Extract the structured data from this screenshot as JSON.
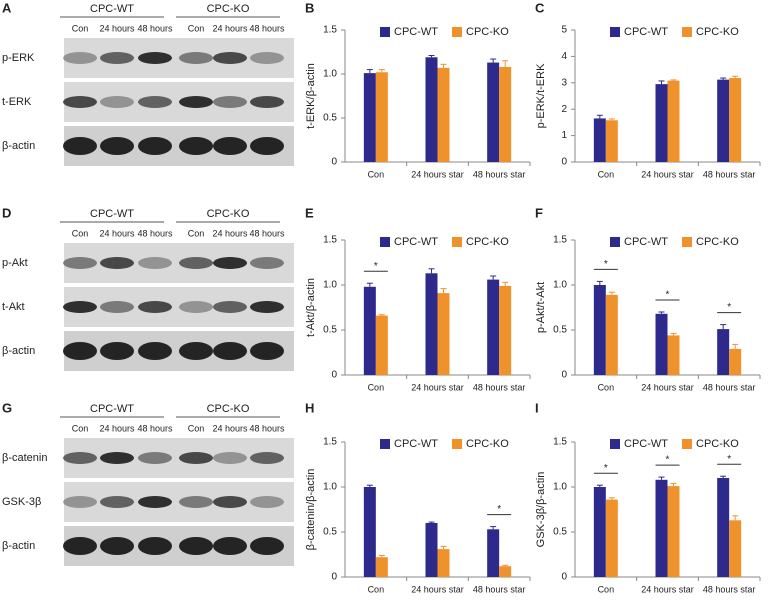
{
  "blots": [
    {
      "panel": "A",
      "groups": [
        "CPC-WT",
        "CPC-KO"
      ],
      "lanes": [
        "Con",
        "24 hours",
        "48 hours",
        "Con",
        "24 hours",
        "48 hours"
      ],
      "rows": [
        "p-ERK",
        "t-ERK",
        "β-actin"
      ]
    },
    {
      "panel": "D",
      "groups": [
        "CPC-WT",
        "CPC-KO"
      ],
      "lanes": [
        "Con",
        "24 hours",
        "48 hours",
        "Con",
        "24 hours",
        "48 hours"
      ],
      "rows": [
        "p-Akt",
        "t-Akt",
        "β-actin"
      ]
    },
    {
      "panel": "G",
      "groups": [
        "CPC-WT",
        "CPC-KO"
      ],
      "lanes": [
        "Con",
        "24 hours",
        "48 hours",
        "Con",
        "24 hours",
        "48 hours"
      ],
      "rows": [
        "β-catenin",
        "GSK-3β",
        "β-actin"
      ]
    }
  ],
  "chart_data": [
    {
      "type": "bar",
      "panel": "B",
      "ylabel": "t-ERK/β-actin",
      "categories": [
        "Con",
        "24 hours star",
        "48 hours star"
      ],
      "series": [
        {
          "name": "CPC-WT",
          "color": "#2e2a8c",
          "values": [
            1.01,
            1.19,
            1.13
          ],
          "errors": [
            0.04,
            0.02,
            0.04
          ]
        },
        {
          "name": "CPC-KO",
          "color": "#f0922b",
          "values": [
            1.02,
            1.07,
            1.08
          ],
          "errors": [
            0.03,
            0.04,
            0.07
          ]
        }
      ],
      "significance": [
        null,
        null,
        null
      ],
      "ylim": [
        0,
        1.5
      ],
      "yticks": [
        0,
        0.5,
        {
          "value": 1,
          "label": "1.0"
        },
        1.5
      ]
    },
    {
      "type": "bar",
      "panel": "C",
      "ylabel": "p-ERK/t-ERK",
      "categories": [
        "Con",
        "24 hours star",
        "48 hours star"
      ],
      "series": [
        {
          "name": "CPC-WT",
          "color": "#2e2a8c",
          "values": [
            1.65,
            2.95,
            3.12
          ],
          "errors": [
            0.12,
            0.12,
            0.06
          ]
        },
        {
          "name": "CPC-KO",
          "color": "#f0922b",
          "values": [
            1.58,
            3.08,
            3.18
          ],
          "errors": [
            0.05,
            0.03,
            0.07
          ]
        }
      ],
      "significance": [
        null,
        null,
        null
      ],
      "ylim": [
        0,
        5
      ],
      "yticks": [
        0,
        1,
        2,
        3,
        4,
        5
      ]
    },
    {
      "type": "bar",
      "panel": "E",
      "ylabel": "t-Akt/β-actin",
      "categories": [
        "Con",
        "24 hours star",
        "48 hours star"
      ],
      "series": [
        {
          "name": "CPC-WT",
          "color": "#2e2a8c",
          "values": [
            0.98,
            1.13,
            1.06
          ],
          "errors": [
            0.04,
            0.05,
            0.04
          ]
        },
        {
          "name": "CPC-KO",
          "color": "#f0922b",
          "values": [
            0.66,
            0.91,
            0.99
          ],
          "errors": [
            0.01,
            0.05,
            0.04
          ]
        }
      ],
      "significance": [
        "*",
        null,
        null
      ],
      "ylim": [
        0,
        1.5
      ],
      "yticks": [
        0,
        0.5,
        {
          "value": 1,
          "label": "1.0"
        },
        1.5
      ]
    },
    {
      "type": "bar",
      "panel": "F",
      "ylabel": "p-Akt/t-Akt",
      "categories": [
        "Con",
        "24 hours star",
        "48 hours star"
      ],
      "series": [
        {
          "name": "CPC-WT",
          "color": "#2e2a8c",
          "values": [
            1.0,
            0.68,
            0.51
          ],
          "errors": [
            0.04,
            0.02,
            0.05
          ]
        },
        {
          "name": "CPC-KO",
          "color": "#f0922b",
          "values": [
            0.89,
            0.44,
            0.29
          ],
          "errors": [
            0.03,
            0.02,
            0.05
          ]
        }
      ],
      "significance": [
        "*",
        "*",
        "*"
      ],
      "ylim": [
        0,
        1.5
      ],
      "yticks": [
        0,
        0.5,
        {
          "value": 1,
          "label": "1.0"
        },
        1.5
      ]
    },
    {
      "type": "bar",
      "panel": "H",
      "ylabel": "β-catenin/β-actin",
      "categories": [
        "Con",
        "24 hours star",
        "48 hours star"
      ],
      "series": [
        {
          "name": "CPC-WT",
          "color": "#2e2a8c",
          "values": [
            1.0,
            0.6,
            0.53
          ],
          "errors": [
            0.02,
            0.01,
            0.03
          ]
        },
        {
          "name": "CPC-KO",
          "color": "#f0922b",
          "values": [
            0.22,
            0.31,
            0.12
          ],
          "errors": [
            0.02,
            0.03,
            0.01
          ]
        }
      ],
      "significance": [
        null,
        null,
        "*"
      ],
      "ylim": [
        0,
        1.5
      ],
      "yticks": [
        0,
        0.5,
        {
          "value": 1,
          "label": "1.0"
        },
        1.5
      ]
    },
    {
      "type": "bar",
      "panel": "I",
      "ylabel": "GSK-3β/β-actin",
      "categories": [
        "Con",
        "24 hours star",
        "48 hours star"
      ],
      "series": [
        {
          "name": "CPC-WT",
          "color": "#2e2a8c",
          "values": [
            1.0,
            1.08,
            1.1
          ],
          "errors": [
            0.02,
            0.03,
            0.02
          ]
        },
        {
          "name": "CPC-KO",
          "color": "#f0922b",
          "values": [
            0.86,
            1.01,
            0.63
          ],
          "errors": [
            0.02,
            0.03,
            0.05
          ]
        }
      ],
      "significance": [
        "*",
        "*",
        "*"
      ],
      "ylim": [
        0,
        1.5
      ],
      "yticks": [
        0,
        0.5,
        {
          "value": 1,
          "label": "1.0"
        },
        1.5
      ]
    }
  ]
}
